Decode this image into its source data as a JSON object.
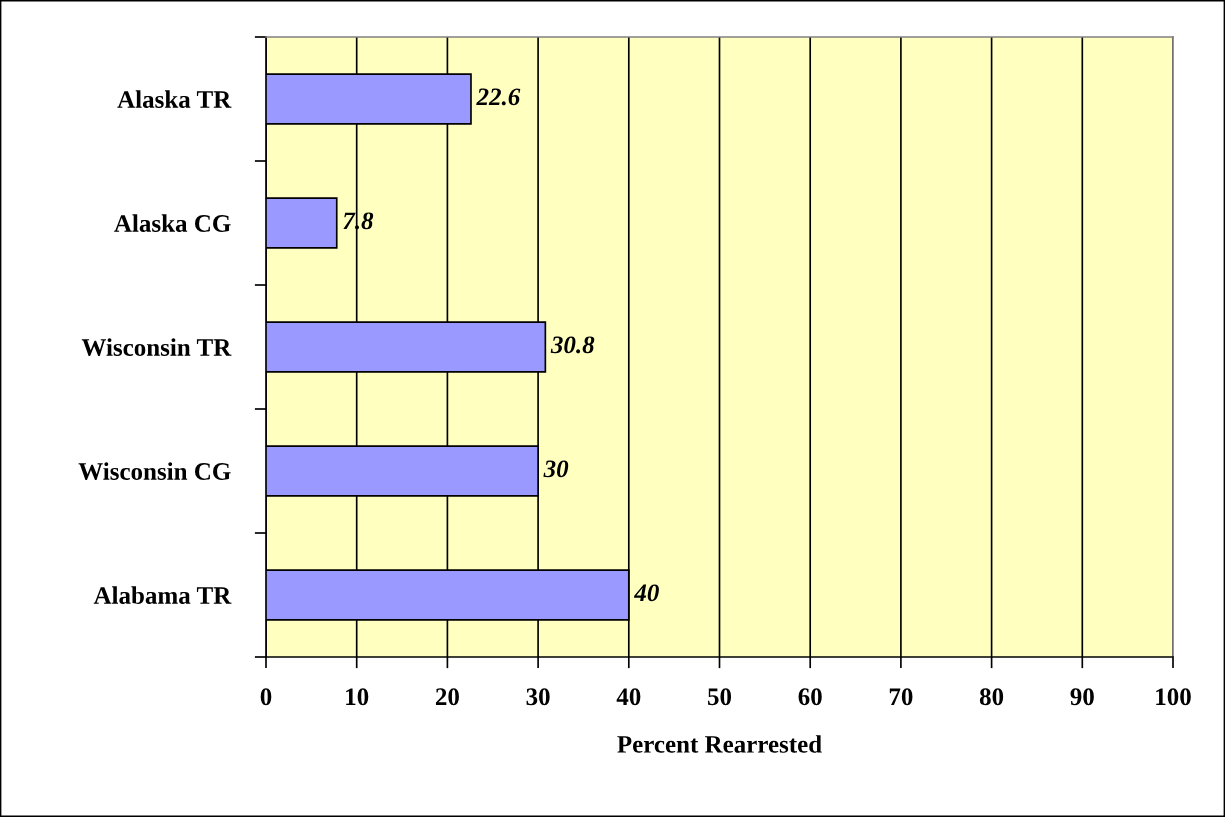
{
  "chart_data": {
    "type": "bar",
    "orientation": "horizontal",
    "categories": [
      "Alaska TR",
      "Alaska CG",
      "Wisconsin TR",
      "Wisconsin CG",
      "Alabama TR"
    ],
    "values": [
      22.6,
      7.8,
      30.8,
      30,
      40
    ],
    "color": "#9999ff",
    "xlabel": "Percent Rearrested",
    "xlim": [
      0,
      100
    ],
    "xticks": [
      0,
      10,
      20,
      30,
      40,
      50,
      60,
      70,
      80,
      90,
      100
    ],
    "grid": "x",
    "data_labels": true
  }
}
